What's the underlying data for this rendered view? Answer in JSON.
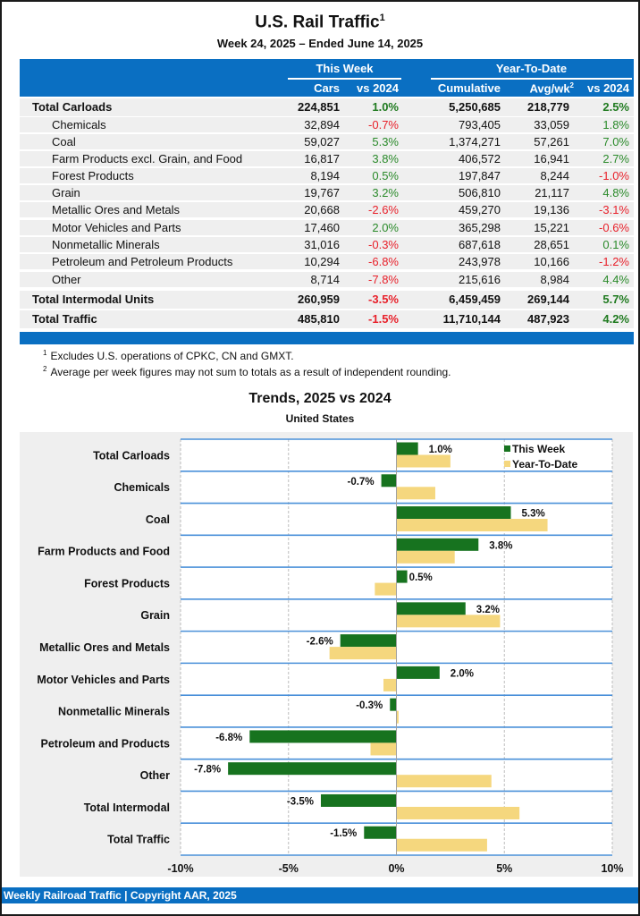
{
  "header": {
    "title": "U.S. Rail Traffic",
    "title_sup": "1",
    "subtitle": "Week 24, 2025 – Ended June 14, 2025"
  },
  "table": {
    "group_this_week": "This Week",
    "group_ytd": "Year-To-Date",
    "columns": {
      "cars": "Cars",
      "tw_vs": "vs 2024",
      "cumulative": "Cumulative",
      "avg": "Avg/wk",
      "avg_sup": "2",
      "ytd_vs": "vs 2024"
    },
    "rows": [
      {
        "label": "Total Carloads",
        "bold": true,
        "cars": "224,851",
        "tw_vs": "1.0%",
        "cumulative": "5,250,685",
        "avg": "218,779",
        "ytd_vs": "2.5%"
      },
      {
        "label": "Chemicals",
        "bold": false,
        "cars": "32,894",
        "tw_vs": "-0.7%",
        "cumulative": "793,405",
        "avg": "33,059",
        "ytd_vs": "1.8%"
      },
      {
        "label": "Coal",
        "bold": false,
        "cars": "59,027",
        "tw_vs": "5.3%",
        "cumulative": "1,374,271",
        "avg": "57,261",
        "ytd_vs": "7.0%"
      },
      {
        "label": "Farm Products excl. Grain, and Food",
        "bold": false,
        "cars": "16,817",
        "tw_vs": "3.8%",
        "cumulative": "406,572",
        "avg": "16,941",
        "ytd_vs": "2.7%"
      },
      {
        "label": "Forest Products",
        "bold": false,
        "cars": "8,194",
        "tw_vs": "0.5%",
        "cumulative": "197,847",
        "avg": "8,244",
        "ytd_vs": "-1.0%"
      },
      {
        "label": "Grain",
        "bold": false,
        "cars": "19,767",
        "tw_vs": "3.2%",
        "cumulative": "506,810",
        "avg": "21,117",
        "ytd_vs": "4.8%"
      },
      {
        "label": "Metallic Ores and Metals",
        "bold": false,
        "cars": "20,668",
        "tw_vs": "-2.6%",
        "cumulative": "459,270",
        "avg": "19,136",
        "ytd_vs": "-3.1%"
      },
      {
        "label": "Motor Vehicles and Parts",
        "bold": false,
        "cars": "17,460",
        "tw_vs": "2.0%",
        "cumulative": "365,298",
        "avg": "15,221",
        "ytd_vs": "-0.6%"
      },
      {
        "label": "Nonmetallic Minerals",
        "bold": false,
        "cars": "31,016",
        "tw_vs": "-0.3%",
        "cumulative": "687,618",
        "avg": "28,651",
        "ytd_vs": "0.1%"
      },
      {
        "label": "Petroleum and Petroleum Products",
        "bold": false,
        "cars": "10,294",
        "tw_vs": "-6.8%",
        "cumulative": "243,978",
        "avg": "10,166",
        "ytd_vs": "-1.2%"
      },
      {
        "label": "Other",
        "bold": false,
        "cars": "8,714",
        "tw_vs": "-7.8%",
        "cumulative": "215,616",
        "avg": "8,984",
        "ytd_vs": "4.4%"
      },
      {
        "label": "Total Intermodal Units",
        "bold": true,
        "cars": "260,959",
        "tw_vs": "-3.5%",
        "cumulative": "6,459,459",
        "avg": "269,144",
        "ytd_vs": "5.7%"
      },
      {
        "label": "Total Traffic",
        "bold": true,
        "cars": "485,810",
        "tw_vs": "-1.5%",
        "cumulative": "11,710,144",
        "avg": "487,923",
        "ytd_vs": "4.2%"
      }
    ]
  },
  "notes": [
    {
      "num": "1",
      "text": "Excludes U.S. operations of CPKC, CN and GMXT."
    },
    {
      "num": "2",
      "text": "Average per week figures may not sum to totals as a result of independent rounding."
    }
  ],
  "colors": {
    "brand_blue": "#0a6fc2",
    "this_week": "#17731f",
    "ytd": "#f5d77e",
    "positive": "#2a8a2a",
    "negative": "#e8202a",
    "gridline_blue": "#4a90d9"
  },
  "chart_data": {
    "type": "bar",
    "orientation": "horizontal",
    "title": "Trends, 2025 vs 2024",
    "subtitle": "United States",
    "categories": [
      "Total Carloads",
      "Chemicals",
      "Coal",
      "Farm Products and Food",
      "Forest Products",
      "Grain",
      "Metallic Ores and Metals",
      "Motor Vehicles and Parts",
      "Nonmetallic Minerals",
      "Petroleum and Products",
      "Other",
      "Total Intermodal",
      "Total Traffic"
    ],
    "series": [
      {
        "name": "This Week",
        "values": [
          1.0,
          -0.7,
          5.3,
          3.8,
          0.5,
          3.2,
          -2.6,
          2.0,
          -0.3,
          -6.8,
          -7.8,
          -3.5,
          -1.5
        ],
        "labels": [
          "1.0%",
          "-0.7%",
          "5.3%",
          "3.8%",
          "0.5%",
          "3.2%",
          "-2.6%",
          "2.0%",
          "-0.3%",
          "-6.8%",
          "-7.8%",
          "-3.5%",
          "-1.5%"
        ]
      },
      {
        "name": "Year-To-Date",
        "values": [
          2.5,
          1.8,
          7.0,
          2.7,
          -1.0,
          4.8,
          -3.1,
          -0.6,
          0.1,
          -1.2,
          4.4,
          5.7,
          4.2
        ]
      }
    ],
    "xlim": [
      -10,
      10
    ],
    "xticks": [
      -10,
      -5,
      0,
      5,
      10
    ],
    "xtick_labels": [
      "-10%",
      "-5%",
      "0%",
      "5%",
      "10%"
    ],
    "xlabel": "",
    "ylabel": "",
    "grid": true,
    "legend": "top-right"
  },
  "footer": {
    "text": "Weekly Railroad Traffic | Copyright AAR, 2025"
  }
}
